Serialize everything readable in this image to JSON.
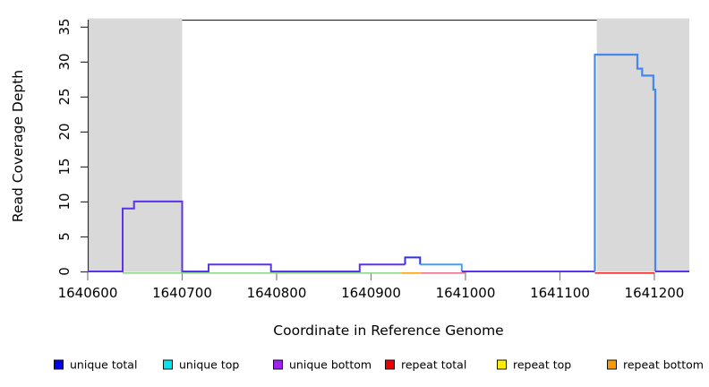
{
  "chart_data": {
    "type": "line",
    "step": true,
    "title": "",
    "xlabel": "Coordinate in Reference Genome",
    "ylabel": "Read Coverage Depth",
    "xlim": [
      1640600,
      1641237
    ],
    "ylim": [
      0,
      36
    ],
    "xticks": [
      1640600,
      1640700,
      1640800,
      1640900,
      1641000,
      1641100,
      1641200
    ],
    "yticks": [
      0,
      5,
      10,
      15,
      20,
      25,
      30,
      35
    ],
    "grid": false,
    "legend_position": "bottom",
    "background_color": "#ffffff",
    "shaded_band_color": "#d9d9d9",
    "shaded_regions": [
      {
        "name": "left-repeat-band",
        "x0": 1640600,
        "x1": 1640700
      },
      {
        "name": "right-repeat-band",
        "x0": 1641139,
        "x1": 1641237
      }
    ],
    "series": [
      {
        "name": "unique-bottom-step",
        "color": "#5B33E8",
        "width": 2,
        "dy": 0,
        "points": [
          [
            1640600,
            0
          ],
          [
            1640637,
            0
          ],
          [
            1640637,
            9
          ],
          [
            1640649,
            9
          ],
          [
            1640649,
            10
          ],
          [
            1640700,
            10
          ],
          [
            1640700,
            0
          ],
          [
            1640728,
            0
          ],
          [
            1640728,
            1
          ],
          [
            1640794,
            1
          ],
          [
            1640794,
            0
          ],
          [
            1640888,
            0
          ],
          [
            1640888,
            1
          ],
          [
            1640936,
            1
          ]
        ]
      },
      {
        "name": "unique-total-peak-2",
        "color": "#3232EE",
        "width": 2,
        "dy": 0,
        "points": [
          [
            1640936,
            1
          ],
          [
            1640936,
            2
          ],
          [
            1640952,
            2
          ],
          [
            1640952,
            1
          ]
        ]
      },
      {
        "name": "unique-top-step-1",
        "color": "#46A0F0",
        "width": 2,
        "dy": 0,
        "points": [
          [
            1640952,
            1
          ],
          [
            1640996,
            1
          ],
          [
            1640996,
            0
          ]
        ]
      },
      {
        "name": "zero-line-mid",
        "color": "#5B33E8",
        "width": 2,
        "dy": 0,
        "points": [
          [
            1640996,
            0
          ],
          [
            1641137,
            0
          ]
        ]
      },
      {
        "name": "unique-top-right-block",
        "color": "#4488EE",
        "width": 2.2,
        "dy": 0,
        "points": [
          [
            1641137,
            0
          ],
          [
            1641137,
            31
          ],
          [
            1641182,
            31
          ],
          [
            1641182,
            29
          ],
          [
            1641187,
            29
          ],
          [
            1641187,
            28
          ],
          [
            1641199,
            28
          ],
          [
            1641199,
            26
          ],
          [
            1641201,
            26
          ],
          [
            1641201,
            0
          ]
        ]
      },
      {
        "name": "zero-line-right",
        "color": "#5B33E8",
        "width": 2,
        "dy": 0,
        "points": [
          [
            1641201,
            0
          ],
          [
            1641237,
            0
          ]
        ]
      },
      {
        "name": "green-zero-line",
        "color": "#8FD88F",
        "width": 1.6,
        "dy": 1.8,
        "points": [
          [
            1640637,
            0
          ],
          [
            1640932,
            0
          ]
        ]
      },
      {
        "name": "orange-zero-line",
        "color": "#FFA018",
        "width": 1.6,
        "dy": 1.8,
        "points": [
          [
            1640932,
            0
          ],
          [
            1640953,
            0
          ]
        ]
      },
      {
        "name": "pink-zero-line",
        "color": "#E87590",
        "width": 1.6,
        "dy": 1.8,
        "points": [
          [
            1640953,
            0
          ],
          [
            1641000,
            0
          ]
        ]
      },
      {
        "name": "red-zero-line",
        "color": "#E63030",
        "width": 1.6,
        "dy": 1.8,
        "points": [
          [
            1641137,
            0
          ],
          [
            1641200,
            0
          ]
        ]
      }
    ],
    "legend": [
      {
        "label": "unique total",
        "color": "#0000EE"
      },
      {
        "label": "unique top",
        "color": "#00E5EE"
      },
      {
        "label": "unique bottom",
        "color": "#A020F0"
      },
      {
        "label": "repeat total",
        "color": "#EE0000"
      },
      {
        "label": "repeat top",
        "color": "#FFEE00"
      },
      {
        "label": "repeat bottom",
        "color": "#F89B00"
      }
    ]
  }
}
